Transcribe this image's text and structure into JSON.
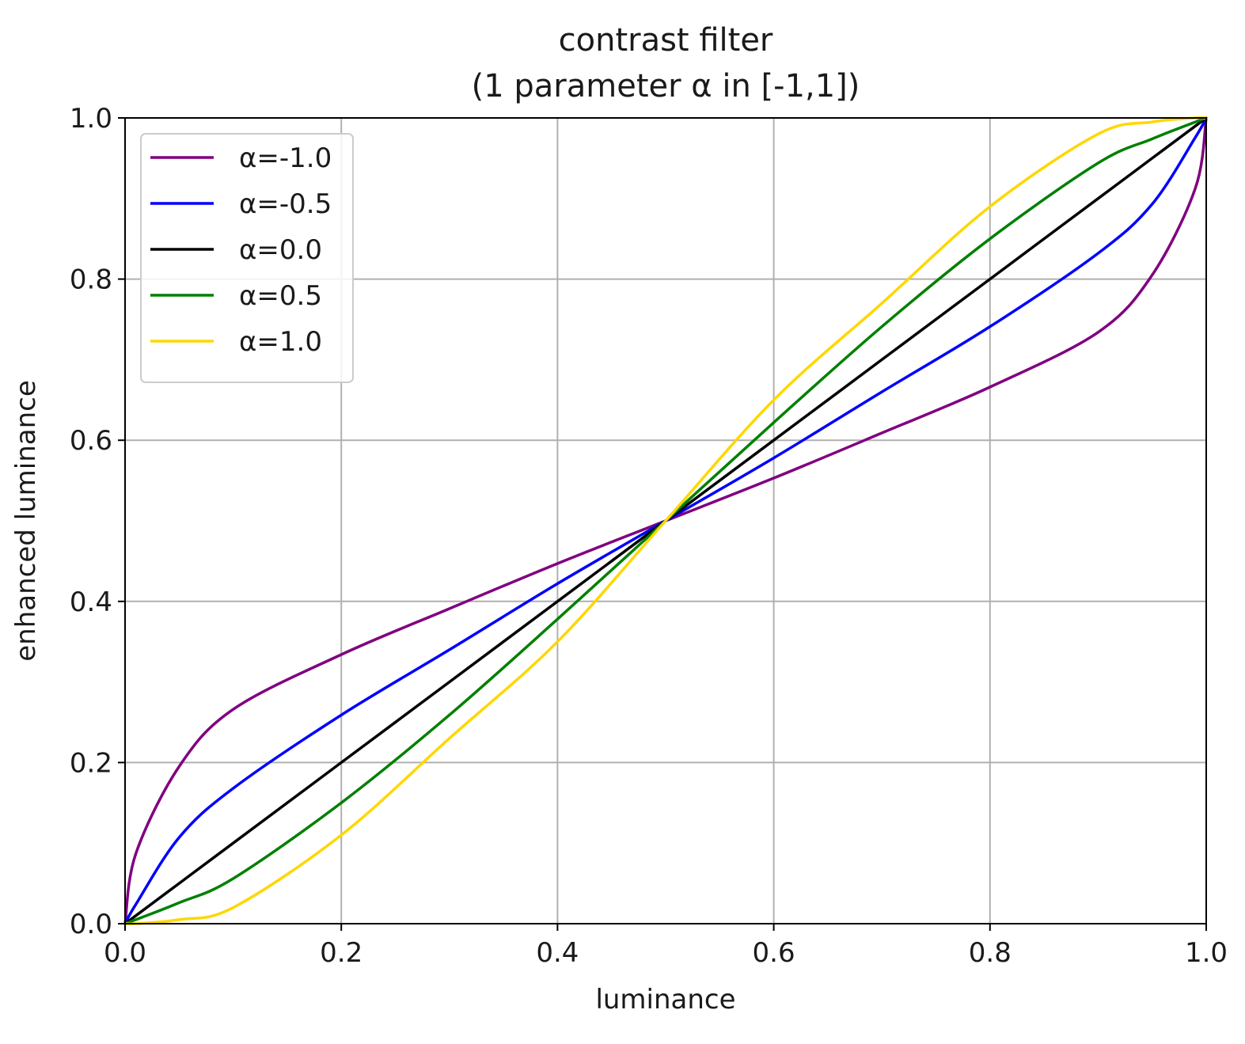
{
  "chart_data": {
    "type": "line",
    "title": "contrast filter",
    "subtitle": "(1 parameter α in [-1,1])",
    "xlabel": "luminance",
    "ylabel": "enhanced luminance",
    "xlim": [
      0.0,
      1.0
    ],
    "ylim": [
      0.0,
      1.0
    ],
    "xticks": [
      "0.0",
      "0.2",
      "0.4",
      "0.6",
      "0.8",
      "1.0"
    ],
    "yticks": [
      "0.0",
      "0.2",
      "0.4",
      "0.6",
      "0.8",
      "1.0"
    ],
    "grid": true,
    "legend_position": "upper-left",
    "x": [
      0.0,
      0.01,
      0.05,
      0.1,
      0.2,
      0.3,
      0.4,
      0.5,
      0.6,
      0.7,
      0.8,
      0.9,
      0.95,
      0.99,
      1.0
    ],
    "series": [
      {
        "name": "α=-1.0",
        "color": "#800080",
        "values": [
          0.0,
          0.087,
          0.195,
          0.266,
          0.334,
          0.391,
          0.447,
          0.5,
          0.553,
          0.609,
          0.666,
          0.734,
          0.805,
          0.913,
          1.0
        ]
      },
      {
        "name": "α=-0.5",
        "color": "#0000ff",
        "values": [
          0.0,
          0.024,
          0.107,
          0.168,
          0.259,
          0.34,
          0.422,
          0.5,
          0.578,
          0.66,
          0.741,
          0.832,
          0.893,
          0.976,
          1.0
        ]
      },
      {
        "name": "α=0.0",
        "color": "#000000",
        "values": [
          0.0,
          0.01,
          0.05,
          0.1,
          0.2,
          0.3,
          0.4,
          0.5,
          0.6,
          0.7,
          0.8,
          0.9,
          0.95,
          0.99,
          1.0
        ]
      },
      {
        "name": "α=0.5",
        "color": "#008000",
        "values": [
          0.0,
          0.005,
          0.026,
          0.056,
          0.15,
          0.259,
          0.378,
          0.5,
          0.622,
          0.741,
          0.85,
          0.944,
          0.974,
          0.995,
          1.0
        ]
      },
      {
        "name": "α=1.0",
        "color": "#ffd700",
        "values": [
          0.0,
          0.0,
          0.005,
          0.02,
          0.11,
          0.23,
          0.35,
          0.5,
          0.65,
          0.77,
          0.89,
          0.98,
          0.995,
          1.0,
          1.0
        ]
      }
    ]
  }
}
